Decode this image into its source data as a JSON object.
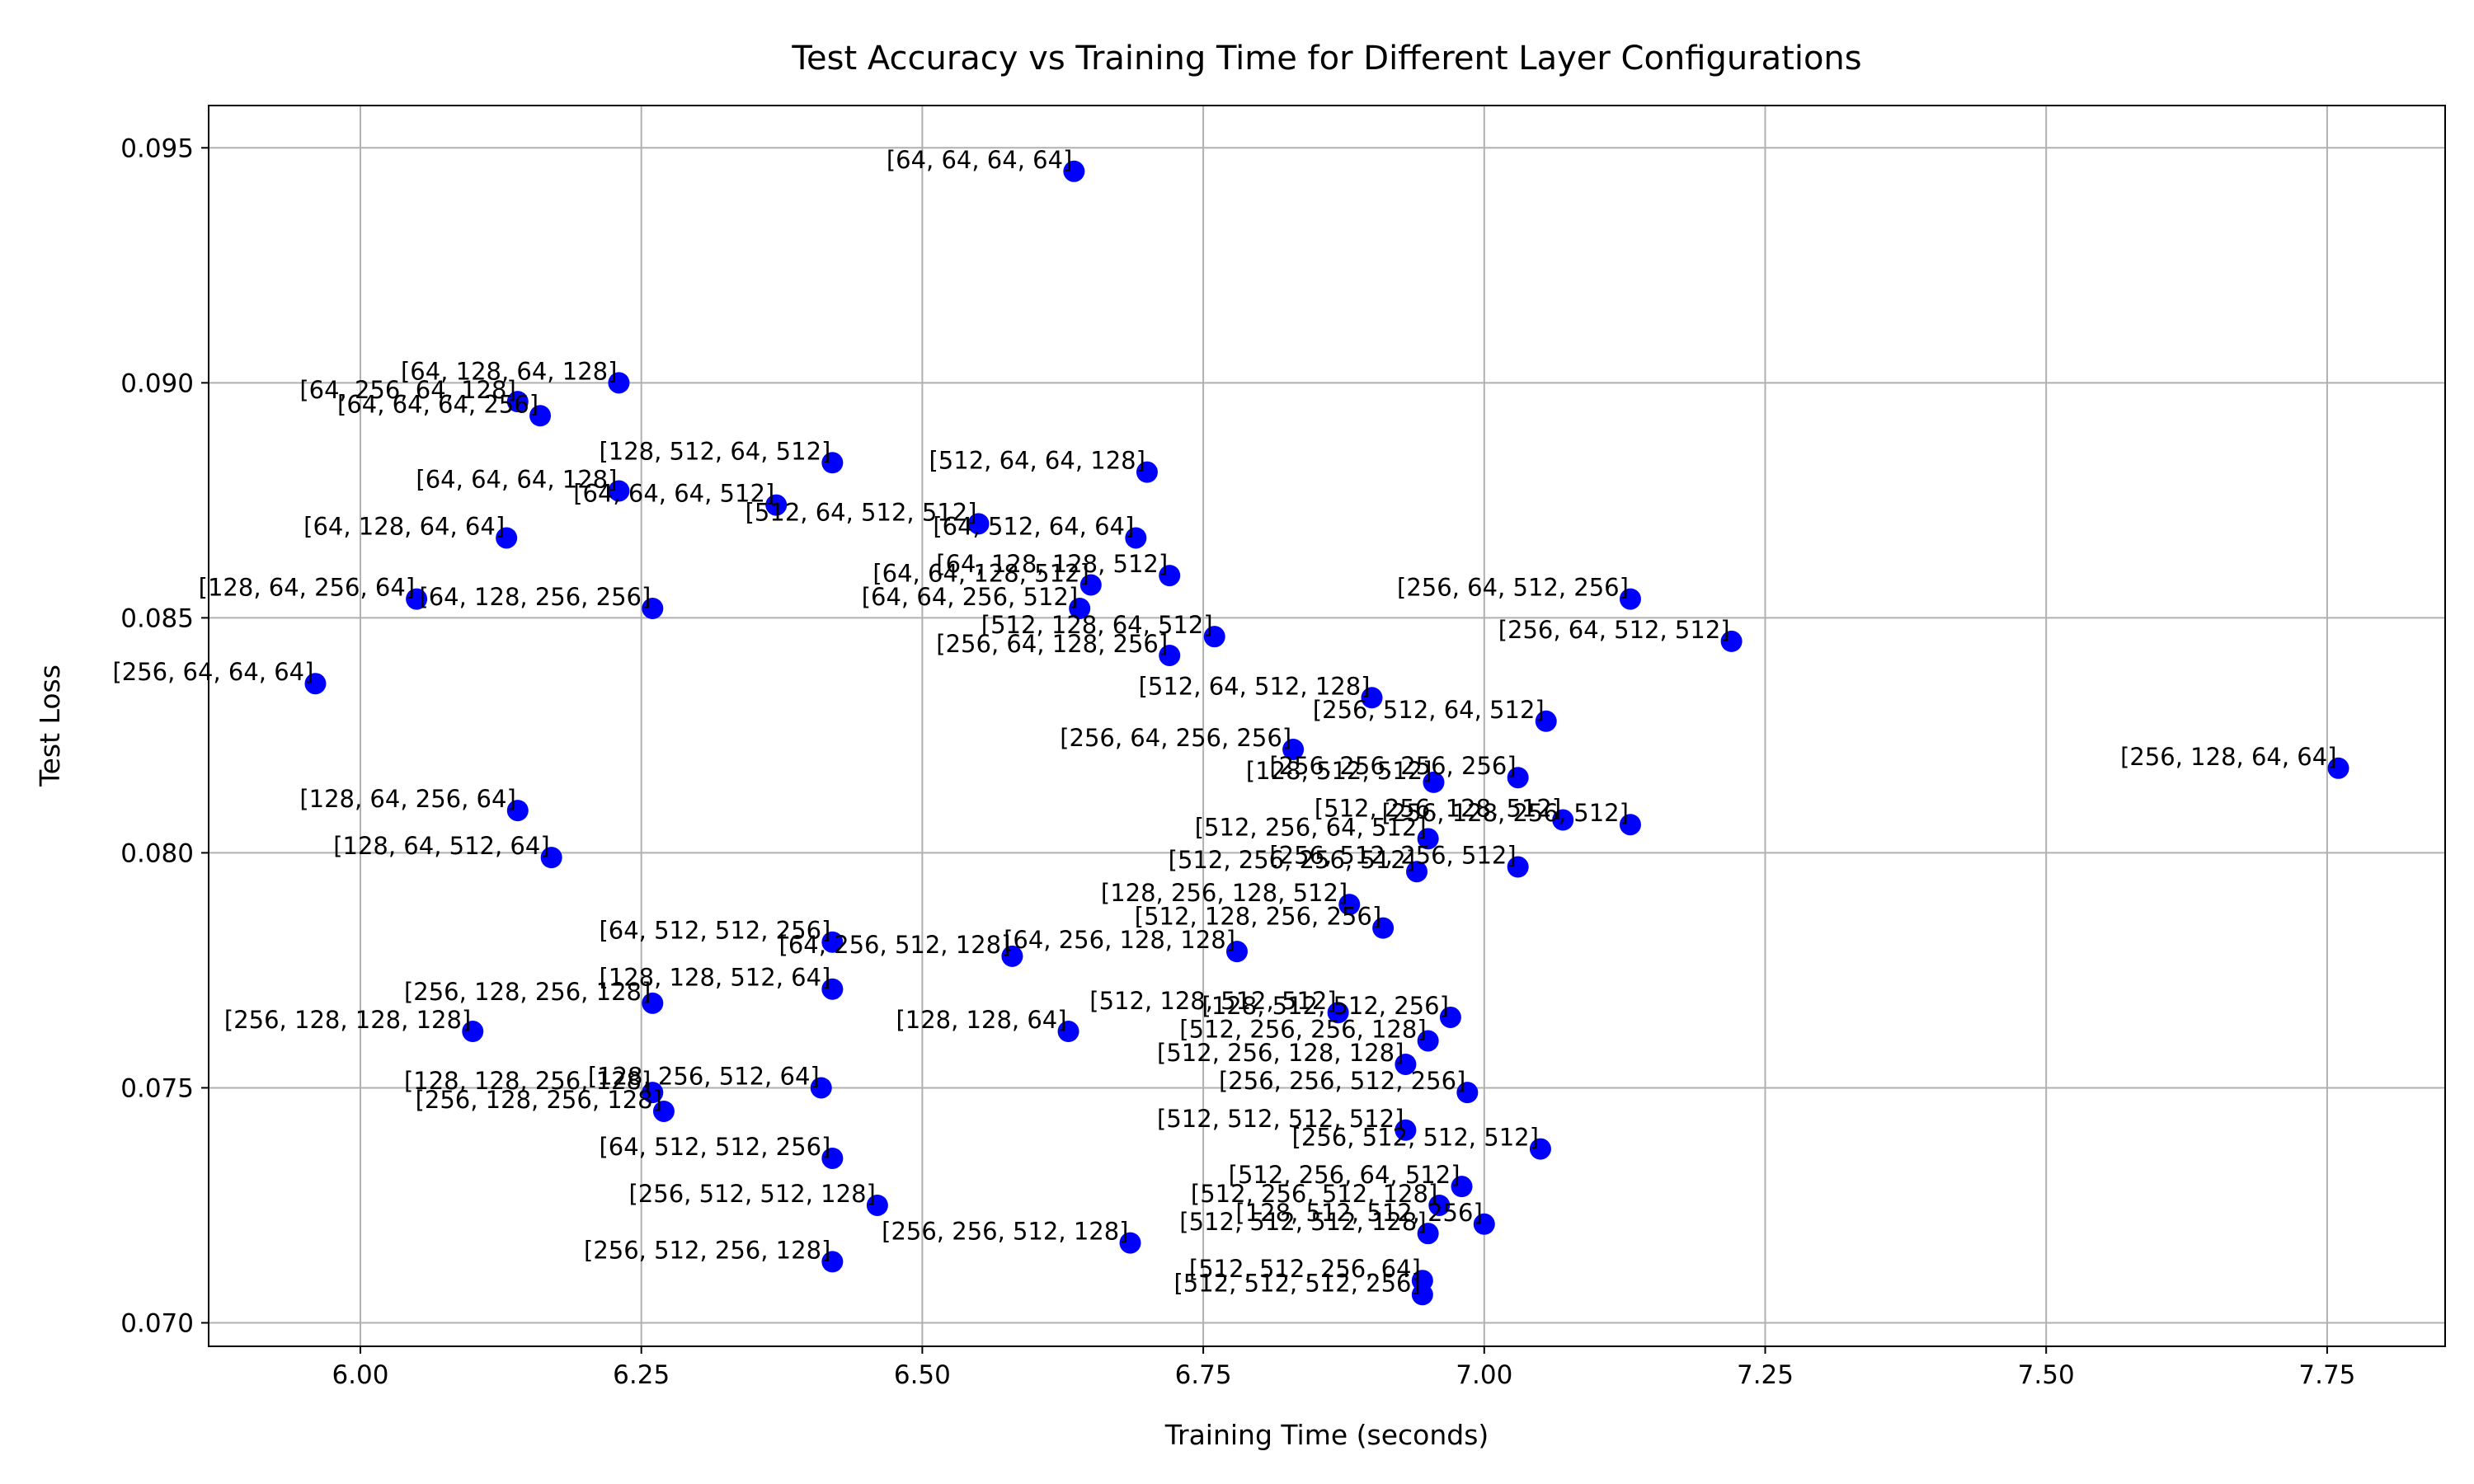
{
  "chart_data": {
    "type": "scatter",
    "title": "Test Accuracy vs Training Time for Different Layer Configurations",
    "xlabel": "Training Time (seconds)",
    "ylabel": "Test Loss",
    "xlim": [
      5.865,
      7.855
    ],
    "ylim": [
      0.0695,
      0.0959
    ],
    "xticks": [
      "6.00",
      "6.25",
      "6.50",
      "6.75",
      "7.00",
      "7.25",
      "7.50",
      "7.75"
    ],
    "yticks": [
      "0.070",
      "0.075",
      "0.080",
      "0.085",
      "0.090",
      "0.095"
    ],
    "grid": true,
    "marker_color": "#0000ff",
    "points": [
      {
        "x": 6.635,
        "y": 0.0945,
        "label": "[64, 64, 64, 64]"
      },
      {
        "x": 6.23,
        "y": 0.09,
        "label": "[64, 128, 64, 128]"
      },
      {
        "x": 6.14,
        "y": 0.0896,
        "label": "[64, 256, 64, 128]"
      },
      {
        "x": 6.16,
        "y": 0.0893,
        "label": "[64, 64, 64, 256]"
      },
      {
        "x": 6.42,
        "y": 0.0883,
        "label": "[128, 512, 64, 512]"
      },
      {
        "x": 6.7,
        "y": 0.0881,
        "label": "[512, 64, 64, 128]"
      },
      {
        "x": 6.23,
        "y": 0.0877,
        "label": "[64, 64, 64, 128]"
      },
      {
        "x": 6.37,
        "y": 0.0874,
        "label": "[64, 64, 64, 512]"
      },
      {
        "x": 6.55,
        "y": 0.087,
        "label": "[512, 64, 512, 512]"
      },
      {
        "x": 6.69,
        "y": 0.0867,
        "label": "[64, 512, 64, 64]"
      },
      {
        "x": 6.13,
        "y": 0.0867,
        "label": "[64, 128, 64, 64]"
      },
      {
        "x": 6.72,
        "y": 0.0859,
        "label": "[64, 128, 128, 512]"
      },
      {
        "x": 6.65,
        "y": 0.0857,
        "label": "[64, 64, 128, 512]"
      },
      {
        "x": 6.64,
        "y": 0.0852,
        "label": "[64, 64, 256, 512]"
      },
      {
        "x": 6.05,
        "y": 0.0854,
        "label": "[128, 64, 256, 64]"
      },
      {
        "x": 6.26,
        "y": 0.0852,
        "label": "[64, 128, 256, 256]"
      },
      {
        "x": 6.76,
        "y": 0.0846,
        "label": "[512, 128, 64, 512]"
      },
      {
        "x": 6.72,
        "y": 0.0842,
        "label": "[256, 64, 128, 256]"
      },
      {
        "x": 7.13,
        "y": 0.0854,
        "label": "[256, 64, 512, 256]"
      },
      {
        "x": 7.22,
        "y": 0.0845,
        "label": "[256, 64, 512, 512]"
      },
      {
        "x": 5.96,
        "y": 0.0836,
        "label": "[256, 64, 64, 64]"
      },
      {
        "x": 6.9,
        "y": 0.0833,
        "label": "[512, 64, 512, 128]"
      },
      {
        "x": 7.055,
        "y": 0.0828,
        "label": "[256, 512, 64, 512]"
      },
      {
        "x": 6.83,
        "y": 0.0822,
        "label": "[256, 64, 256, 256]"
      },
      {
        "x": 7.76,
        "y": 0.0818,
        "label": "[256, 128, 64, 64]"
      },
      {
        "x": 6.955,
        "y": 0.0815,
        "label": "[128, 512, 512]"
      },
      {
        "x": 7.03,
        "y": 0.0816,
        "label": "[256, 256, 256, 256]"
      },
      {
        "x": 6.14,
        "y": 0.0809,
        "label": "[128, 64, 256, 64]"
      },
      {
        "x": 7.07,
        "y": 0.0807,
        "label": "[512, 256, 128, 512]"
      },
      {
        "x": 7.13,
        "y": 0.0806,
        "label": "[256, 128, 256, 512]"
      },
      {
        "x": 6.95,
        "y": 0.0803,
        "label": "[512, 256, 64, 512]"
      },
      {
        "x": 6.17,
        "y": 0.0799,
        "label": "[128, 64, 512, 64]"
      },
      {
        "x": 6.94,
        "y": 0.0796,
        "label": "[512, 256, 256, 512]"
      },
      {
        "x": 7.03,
        "y": 0.0797,
        "label": "[256, 512, 256, 512]"
      },
      {
        "x": 6.88,
        "y": 0.0789,
        "label": "[128, 256, 128, 512]"
      },
      {
        "x": 6.91,
        "y": 0.0784,
        "label": "[512, 128, 256, 256]"
      },
      {
        "x": 6.78,
        "y": 0.0779,
        "label": "[64, 256, 128, 128]"
      },
      {
        "x": 6.42,
        "y": 0.0781,
        "label": "[64, 512, 512, 256]"
      },
      {
        "x": 6.58,
        "y": 0.0778,
        "label": "[64, 256, 512, 128]"
      },
      {
        "x": 6.1,
        "y": 0.0762,
        "label": "[256, 128, 128, 128]"
      },
      {
        "x": 6.26,
        "y": 0.0768,
        "label": "[256, 128, 256, 128]"
      },
      {
        "x": 6.42,
        "y": 0.0771,
        "label": "[128, 128, 512, 64]"
      },
      {
        "x": 6.63,
        "y": 0.0762,
        "label": "[128, 128, 64]"
      },
      {
        "x": 6.87,
        "y": 0.0766,
        "label": "[512, 128, 512, 512]"
      },
      {
        "x": 6.97,
        "y": 0.0765,
        "label": "[128, 512, 512, 256]"
      },
      {
        "x": 6.95,
        "y": 0.076,
        "label": "[512, 256, 256, 128]"
      },
      {
        "x": 6.93,
        "y": 0.0755,
        "label": "[512, 256, 128, 128]"
      },
      {
        "x": 6.985,
        "y": 0.0749,
        "label": "[256, 256, 512, 256]"
      },
      {
        "x": 6.26,
        "y": 0.0749,
        "label": "[128, 128, 256, 128]"
      },
      {
        "x": 6.27,
        "y": 0.0745,
        "label": "[256, 128, 256, 128]"
      },
      {
        "x": 6.41,
        "y": 0.075,
        "label": "[128, 256, 512, 64]"
      },
      {
        "x": 6.42,
        "y": 0.0735,
        "label": "[64, 512, 512, 256]"
      },
      {
        "x": 6.93,
        "y": 0.0741,
        "label": "[512, 512, 512, 512]"
      },
      {
        "x": 7.05,
        "y": 0.0737,
        "label": "[256, 512, 512, 512]"
      },
      {
        "x": 6.98,
        "y": 0.0729,
        "label": "[512, 256, 64, 512]"
      },
      {
        "x": 6.46,
        "y": 0.0725,
        "label": "[256, 512, 512, 128]"
      },
      {
        "x": 6.96,
        "y": 0.0725,
        "label": "[512, 256, 512, 128]"
      },
      {
        "x": 6.685,
        "y": 0.0717,
        "label": "[256, 256, 512, 128]"
      },
      {
        "x": 6.95,
        "y": 0.0719,
        "label": "[512, 512, 512, 128]"
      },
      {
        "x": 7.0,
        "y": 0.0721,
        "label": "[128, 512, 512, 256]"
      },
      {
        "x": 6.42,
        "y": 0.0713,
        "label": "[256, 512, 256, 128]"
      },
      {
        "x": 6.945,
        "y": 0.0709,
        "label": "[512, 512, 256, 64]"
      },
      {
        "x": 6.945,
        "y": 0.0706,
        "label": "[512, 512, 512, 256]"
      }
    ]
  }
}
